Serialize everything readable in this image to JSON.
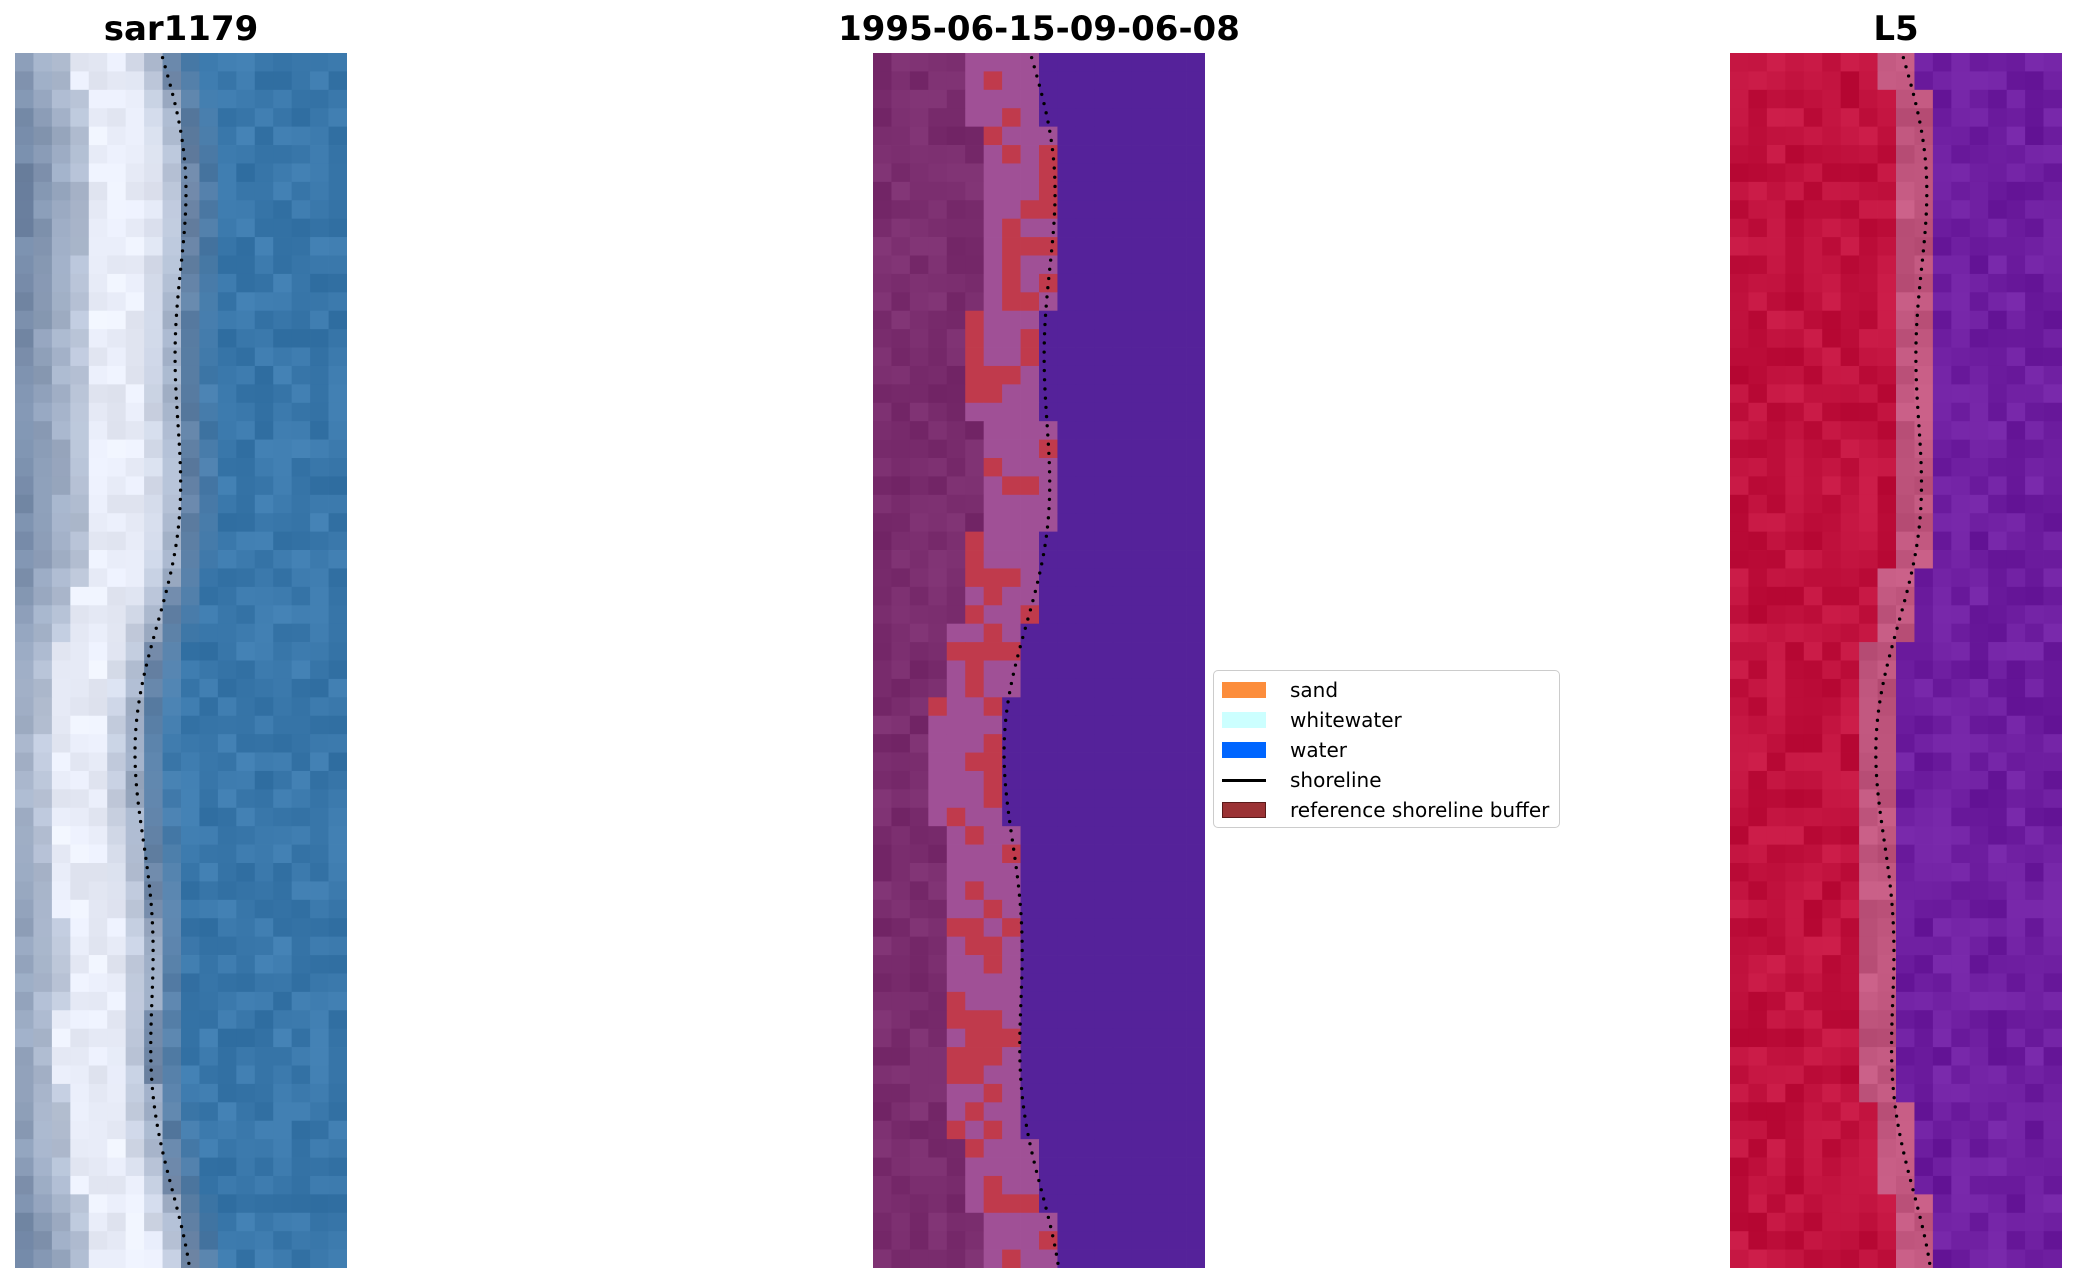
{
  "panels": {
    "rgb": {
      "title": "sar1179"
    },
    "classified": {
      "title": "1995-06-15-09-06-08"
    },
    "mndwi": {
      "title": "L5"
    }
  },
  "legend": {
    "items": [
      {
        "label": "sand",
        "kind": "patch",
        "color": "#fc8d3c"
      },
      {
        "label": "whitewater",
        "kind": "patch",
        "color": "#ccffff"
      },
      {
        "label": "water",
        "kind": "patch",
        "color": "#0066ff"
      },
      {
        "label": "shoreline",
        "kind": "line",
        "color": "#000000"
      },
      {
        "label": "reference shoreline buffer",
        "kind": "patch",
        "color": "#9b3335"
      }
    ]
  },
  "colors": {
    "rgb_water": "#3a78ab",
    "rgb_whitewater": "#e8ecf8",
    "rgb_land": "#6e84a3",
    "class_water": "#55229a",
    "class_land": "#7a2d6e",
    "class_buffer": "#a05096",
    "class_sand_buffer": "#c03a4c",
    "mndwi_land": "#c1123e",
    "mndwi_water": "#6e1ea0",
    "mndwi_transition": "#c0567e"
  }
}
